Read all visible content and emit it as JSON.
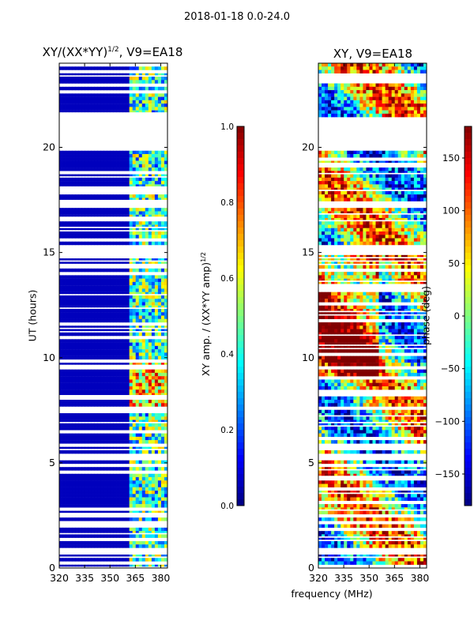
{
  "suptitle": "2018-01-18 0.0-24.0",
  "chart_data": [
    {
      "type": "heatmap",
      "title": "XY/(XX*YY)^1/2, V9=EA18",
      "title_main": "XY/(XX*YY)",
      "title_exp": "1/2",
      "title_tail": ", V9=EA18",
      "xlabel": "frequency (MHz)",
      "ylabel": "UT (hours)",
      "xlim": [
        320,
        384
      ],
      "ylim": [
        0,
        24
      ],
      "xticks": [
        320,
        335,
        350,
        365,
        380
      ],
      "yticks": [
        0,
        5,
        10,
        15,
        20
      ],
      "colormap": "jet",
      "colorbar": {
        "label": "XY amp. / (XX*YY amp)^1/2",
        "label_main": "XY amp. / (XX*YY amp)",
        "label_exp": "1/2",
        "range": [
          0.0,
          1.0
        ],
        "ticks": [
          "0.0",
          "0.2",
          "0.4",
          "0.6",
          "0.8",
          "1.0"
        ],
        "tick_values": [
          0,
          0.2,
          0.4,
          0.6,
          0.8,
          1.0
        ]
      },
      "data_gaps_hours": [
        [
          19.9,
          21.4
        ],
        [
          17.1,
          17.4
        ],
        [
          14.9,
          15.3
        ],
        [
          5.1,
          5.4
        ],
        [
          0.7,
          0.9
        ]
      ],
      "active_band_mhz": [
        361,
        384
      ]
    },
    {
      "type": "heatmap",
      "title": "XY, V9=EA18",
      "xlabel": "frequency (MHz)",
      "ylabel": "",
      "xlim": [
        320,
        384
      ],
      "ylim": [
        0,
        24
      ],
      "xticks": [
        320,
        335,
        350,
        365,
        380
      ],
      "yticks": [
        0,
        5,
        10,
        15,
        20
      ],
      "colormap": "jet",
      "colorbar": {
        "label": "phase (deg)",
        "range": [
          -180,
          180
        ],
        "ticks": [
          "150",
          "100",
          "50",
          "0",
          "−50",
          "−100",
          "−150"
        ],
        "tick_values": [
          150,
          100,
          50,
          0,
          -50,
          -100,
          -150
        ]
      },
      "data_gaps_hours": [
        [
          19.9,
          21.4
        ],
        [
          17.1,
          17.4
        ],
        [
          14.9,
          15.3
        ],
        [
          5.1,
          5.4
        ],
        [
          0.7,
          0.9
        ]
      ]
    }
  ]
}
